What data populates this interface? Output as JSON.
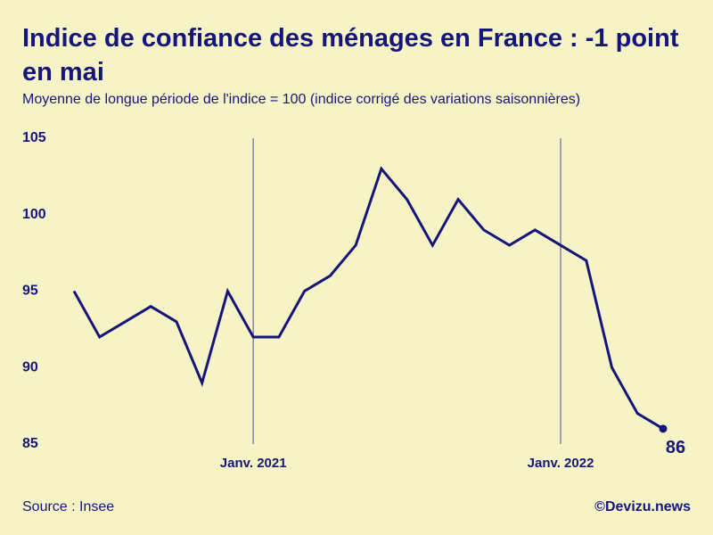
{
  "chart_data": {
    "type": "line",
    "title": "Indice de confiance des ménages en France : -1 point en mai",
    "subtitle": "Moyenne de longue période de l'indice = 100 (indice corrigé des variations saisonnières)",
    "categories": [
      null,
      null,
      null,
      null,
      null,
      null,
      null,
      "Janv. 2021",
      null,
      null,
      null,
      null,
      null,
      null,
      null,
      null,
      null,
      null,
      null,
      "Janv. 2022",
      null,
      null,
      null,
      null
    ],
    "values": [
      95,
      92,
      93,
      94,
      93,
      89,
      95,
      92,
      92,
      95,
      96,
      98,
      103,
      101,
      98,
      101,
      99,
      98,
      99,
      98,
      97,
      90,
      87,
      86
    ],
    "color": "#16167a",
    "ylim": [
      85,
      105
    ],
    "yticks": [
      85,
      90,
      95,
      100,
      105
    ],
    "grid": false,
    "source": "Source : Insee",
    "credit": "©Devizu.news"
  }
}
